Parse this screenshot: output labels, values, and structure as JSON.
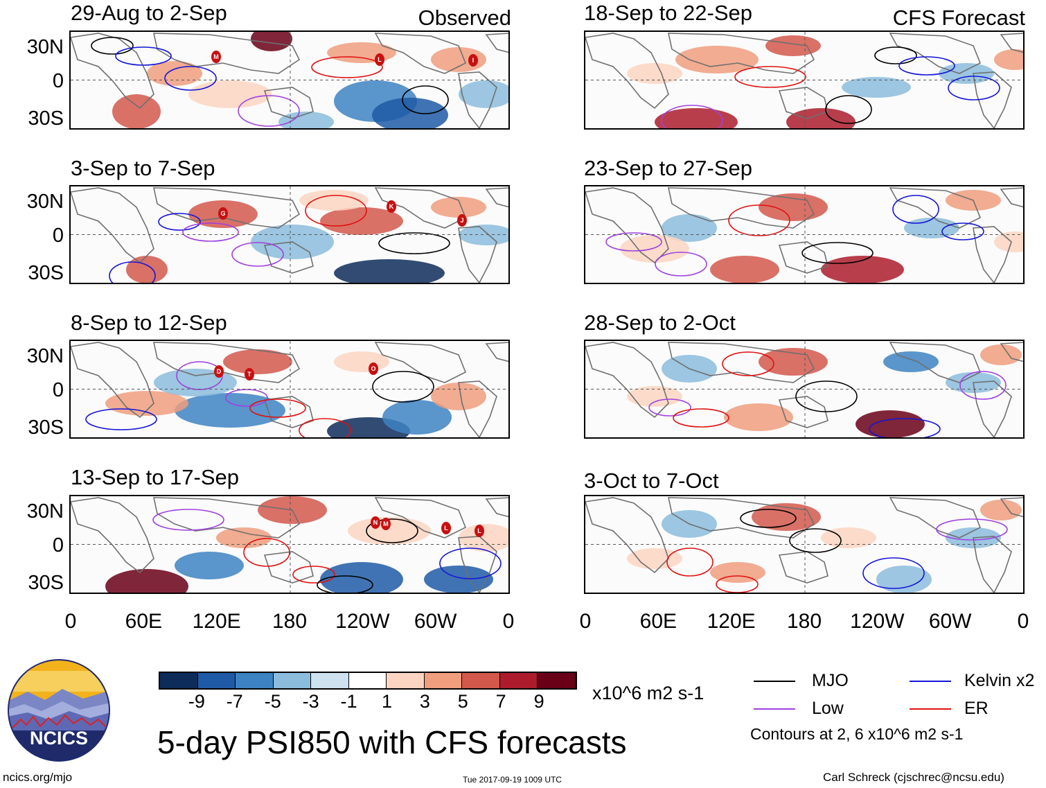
{
  "panels": [
    {
      "title": "29-Aug to 2-Sep",
      "tag": "Observed"
    },
    {
      "title": "3-Sep to 7-Sep",
      "tag": ""
    },
    {
      "title": "8-Sep to 12-Sep",
      "tag": ""
    },
    {
      "title": "13-Sep to 17-Sep",
      "tag": ""
    },
    {
      "title": "18-Sep to 22-Sep",
      "tag": "CFS Forecast"
    },
    {
      "title": "23-Sep to 27-Sep",
      "tag": ""
    },
    {
      "title": "28-Sep to 2-Oct",
      "tag": ""
    },
    {
      "title": "3-Oct to 7-Oct",
      "tag": ""
    }
  ],
  "lat_labels": [
    "30N",
    "0",
    "30S"
  ],
  "lon_labels": [
    "0",
    "60E",
    "120E",
    "180",
    "120W",
    "60W",
    "0"
  ],
  "storm_markers": [
    {
      "panel": 0,
      "labels": [
        "M",
        "L",
        "I"
      ]
    },
    {
      "panel": 1,
      "labels": [
        "G",
        "K",
        "J"
      ]
    },
    {
      "panel": 2,
      "labels": [
        "D",
        "T",
        "O"
      ]
    },
    {
      "panel": 3,
      "labels": [
        "N",
        "M",
        "L",
        "L"
      ]
    }
  ],
  "colorbar": {
    "ticks": [
      "-9",
      "-7",
      "-5",
      "-3",
      "-1",
      "1",
      "3",
      "5",
      "7",
      "9"
    ],
    "colors": [
      "#0d2c5a",
      "#1f5aa6",
      "#3d83c2",
      "#8bbcdc",
      "#cde1ee",
      "#ffffff",
      "#fbd5c1",
      "#ef9e7e",
      "#d2584c",
      "#ac1c2c",
      "#6a0018"
    ],
    "units": "x10^6 m2 s-1"
  },
  "legend": {
    "items": [
      {
        "label": "MJO",
        "color": "#000000"
      },
      {
        "label": "Kelvin x2",
        "color": "#1515d8"
      },
      {
        "label": "Low",
        "color": "#a040e0"
      },
      {
        "label": "ER",
        "color": "#e01010"
      }
    ],
    "note": "Contours at 2, 6 x10^6 m2 s-1"
  },
  "logo": {
    "text": "NCICS"
  },
  "main_title": "5-day PSI850 with CFS forecasts",
  "footer": {
    "left": "ncics.org/mjo",
    "center": "Tue 2017-09-19 1009 UTC",
    "right": "Carl Schreck (cjschrec@ncsu.edu)"
  }
}
